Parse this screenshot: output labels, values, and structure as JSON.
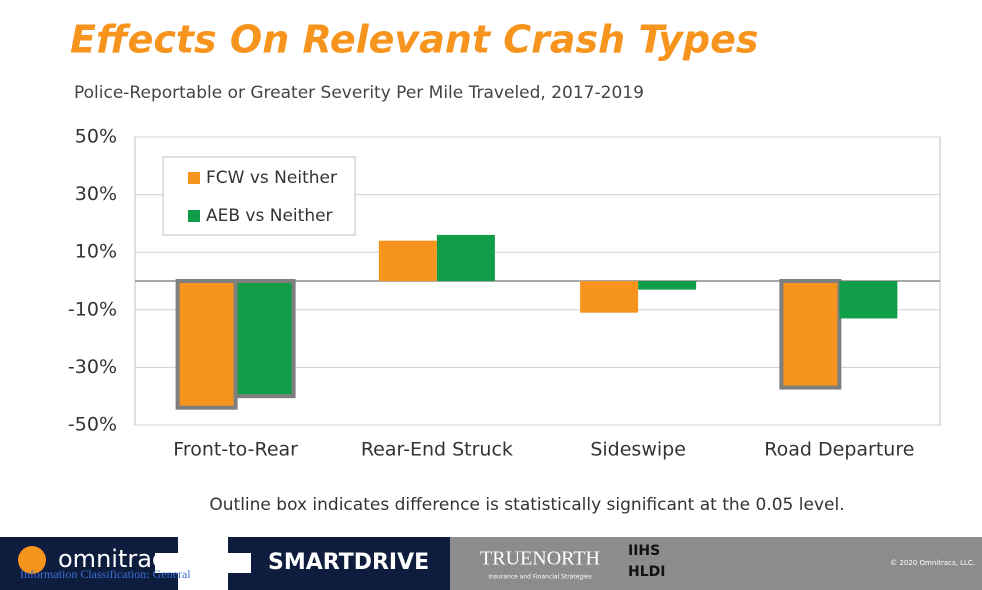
{
  "chart_data": {
    "type": "bar",
    "title": "Effects On Relevant Crash Types",
    "subtitle": "Police-Reportable or Greater Severity Per Mile Traveled, 2017-2019",
    "note": "Outline box indicates difference is statistically significant at the 0.05 level.",
    "categories": [
      "Front-to-Rear",
      "Rear-End Struck",
      "Sideswipe",
      "Road Departure"
    ],
    "series": [
      {
        "name": "FCW vs Neither",
        "color": "#f7941d",
        "values": [
          -44,
          14,
          -11,
          -37
        ],
        "significant": [
          true,
          false,
          false,
          true
        ]
      },
      {
        "name": "AEB vs Neither",
        "color": "#0f9d48",
        "values": [
          -40,
          16,
          -3,
          -13
        ],
        "significant": [
          true,
          false,
          false,
          false
        ]
      }
    ],
    "ylim": [
      -50,
      50
    ],
    "yticks": [
      {
        "value": -50,
        "label": "-50%"
      },
      {
        "value": -30,
        "label": "-30%"
      },
      {
        "value": -10,
        "label": "-10%"
      },
      {
        "value": 10,
        "label": "10%"
      },
      {
        "value": 30,
        "label": "30%"
      },
      {
        "value": 50,
        "label": "50%"
      }
    ],
    "grid": true,
    "legend": "upper left"
  },
  "footer": {
    "omnitracs": "omnitracs",
    "smartdrive": "SMARTDRIVE",
    "truenorth": "TRUENORTH",
    "truenorth_tagline": "Insurance and Financial Strategies",
    "iihs": "IIHS",
    "hldi": "HLDI",
    "copyright": "© 2020 Omnitracs, LLC.",
    "classification": "Information Classification: General"
  }
}
